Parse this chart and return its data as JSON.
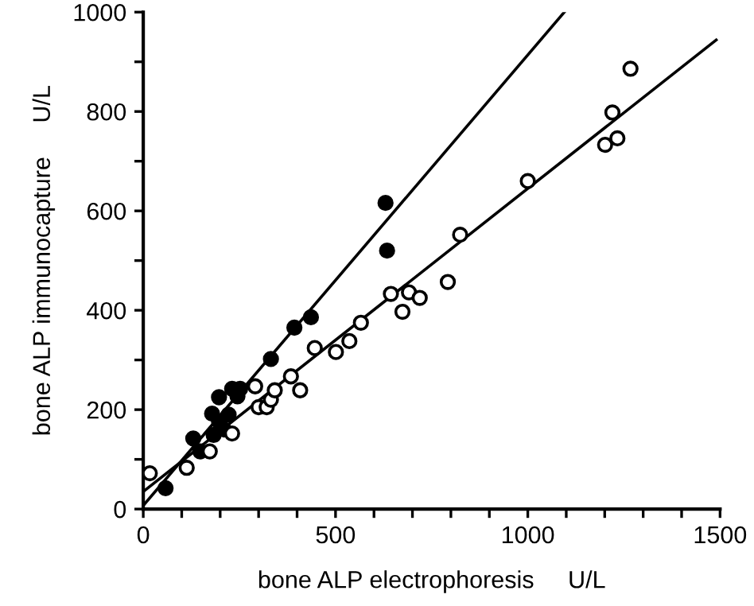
{
  "chart_data": {
    "type": "scatter",
    "xlabel": "bone ALP electrophoresis     U/L",
    "ylabel": "bone ALP immunocapture     U/L",
    "xlim": [
      0,
      1500
    ],
    "ylim": [
      0,
      1000
    ],
    "xticks": [
      0,
      {
        "value": 100,
        "label": null
      },
      {
        "value": 200,
        "label": null
      },
      {
        "value": 300,
        "label": null
      },
      {
        "value": 400,
        "label": null
      },
      500,
      {
        "value": 600,
        "label": null
      },
      {
        "value": 700,
        "label": null
      },
      {
        "value": 800,
        "label": null
      },
      {
        "value": 900,
        "label": null
      },
      1000,
      {
        "value": 1100,
        "label": null
      },
      {
        "value": 1200,
        "label": null
      },
      {
        "value": 1300,
        "label": null
      },
      {
        "value": 1400,
        "label": null
      },
      1500
    ],
    "yticks": [
      0,
      {
        "value": 100,
        "label": null
      },
      200,
      {
        "value": 300,
        "label": null
      },
      400,
      {
        "value": 500,
        "label": null
      },
      600,
      {
        "value": 700,
        "label": null
      },
      800,
      {
        "value": 900,
        "label": null
      },
      1000
    ],
    "grid": false,
    "legend": false,
    "series": [
      {
        "marker": "circle",
        "color": "#000000",
        "x": [
          58,
          130,
          179,
          197,
          197,
          222,
          210,
          183,
          231,
          252,
          245,
          148,
          332,
          393,
          436,
          634,
          630
        ],
        "values": [
          42,
          142,
          192,
          225,
          176,
          190,
          160,
          149,
          242,
          242,
          227,
          116,
          302,
          365,
          386,
          520,
          616
        ]
      },
      {
        "marker": "circle",
        "color": "#ffffff",
        "x": [
          17,
          113,
          173,
          231,
          291,
          300,
          321,
          332,
          342,
          384,
          408,
          446,
          501,
          536,
          566,
          644,
          674,
          691,
          719,
          792,
          824,
          1000,
          1201,
          1233,
          1220,
          1267
        ],
        "values": [
          72,
          83,
          116,
          152,
          247,
          205,
          205,
          220,
          239,
          267,
          239,
          324,
          316,
          338,
          375,
          433,
          397,
          436,
          425,
          457,
          552,
          660,
          733,
          746,
          798,
          886
        ]
      },
      {
        "type": "line",
        "marker": "none",
        "line_style": "solid",
        "color": "#000000",
        "x": [
          0,
          1095
        ],
        "values": [
          7,
          1000
        ]
      },
      {
        "type": "line",
        "marker": "none",
        "line_style": "solid",
        "color": "#000000",
        "x": [
          0,
          1490
        ],
        "values": [
          35,
          944
        ]
      }
    ]
  }
}
